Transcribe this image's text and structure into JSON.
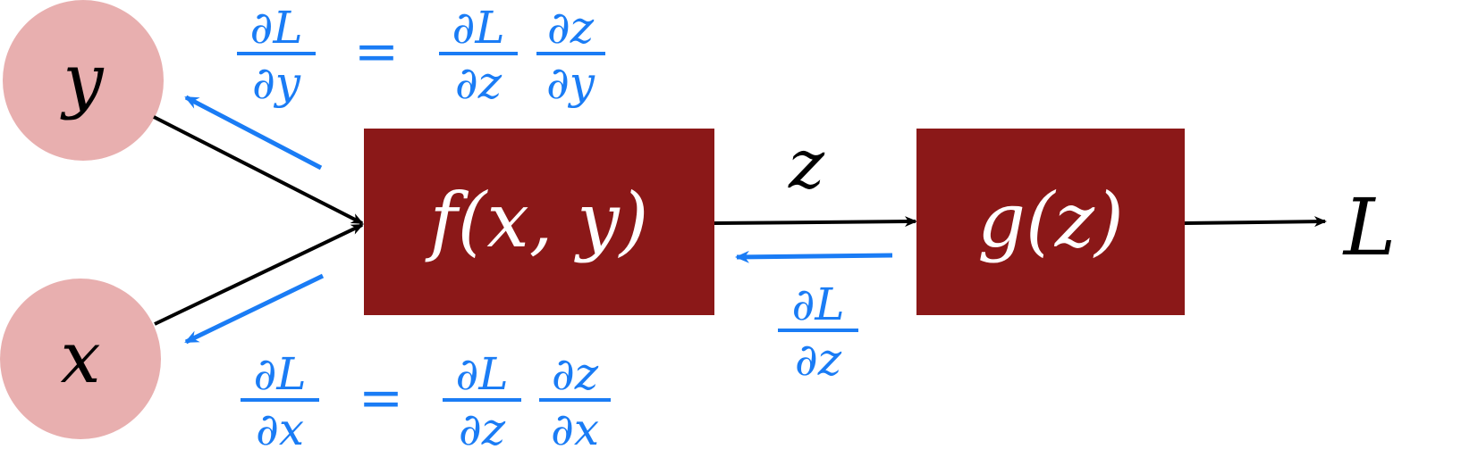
{
  "colors": {
    "node_fill": "#e8afaf",
    "box_fill": "#8b1818",
    "forward": "#000000",
    "backward": "#1a7cf5",
    "box_text": "#ffffff"
  },
  "nodes": {
    "y": {
      "label": "y"
    },
    "x": {
      "label": "x"
    }
  },
  "boxes": {
    "f": {
      "label": "f(x, y)"
    },
    "g": {
      "label": "g(z)"
    }
  },
  "edges": {
    "z_label": "z",
    "output_label": "L"
  },
  "gradients": {
    "dL_dz": {
      "num": "∂L",
      "den": "∂z"
    },
    "dL_dy": {
      "lhs_num": "∂L",
      "lhs_den": "∂y",
      "eq": "=",
      "r1_num": "∂L",
      "r1_den": "∂z",
      "r2_num": "∂z",
      "r2_den": "∂y"
    },
    "dL_dx": {
      "lhs_num": "∂L",
      "lhs_den": "∂x",
      "eq": "=",
      "r1_num": "∂L",
      "r1_den": "∂z",
      "r2_num": "∂z",
      "r2_den": "∂x"
    }
  }
}
